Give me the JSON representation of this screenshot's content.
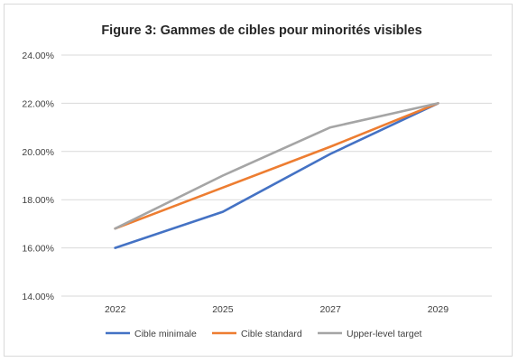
{
  "chart_data": {
    "type": "line",
    "title": "Figure 3: Gammes de cibles pour minorités visibles",
    "categories": [
      "2022",
      "2025",
      "2027",
      "2029"
    ],
    "ylim": [
      14,
      24
    ],
    "y_ticks": [
      14,
      16,
      18,
      20,
      22,
      24
    ],
    "y_tick_labels": [
      "14.00%",
      "16.00%",
      "18.00%",
      "20.00%",
      "22.00%",
      "24.00%"
    ],
    "grid": true,
    "legend_position": "bottom",
    "series": [
      {
        "name": "Cible minimale",
        "color": "#4472C4",
        "values": [
          16.0,
          17.5,
          19.9,
          22.0
        ]
      },
      {
        "name": "Cible standard",
        "color": "#ED7D31",
        "values": [
          16.8,
          18.5,
          20.2,
          22.0
        ]
      },
      {
        "name": "Upper-level target",
        "color": "#A5A5A5",
        "values": [
          16.8,
          19.0,
          21.0,
          22.0
        ]
      }
    ]
  }
}
